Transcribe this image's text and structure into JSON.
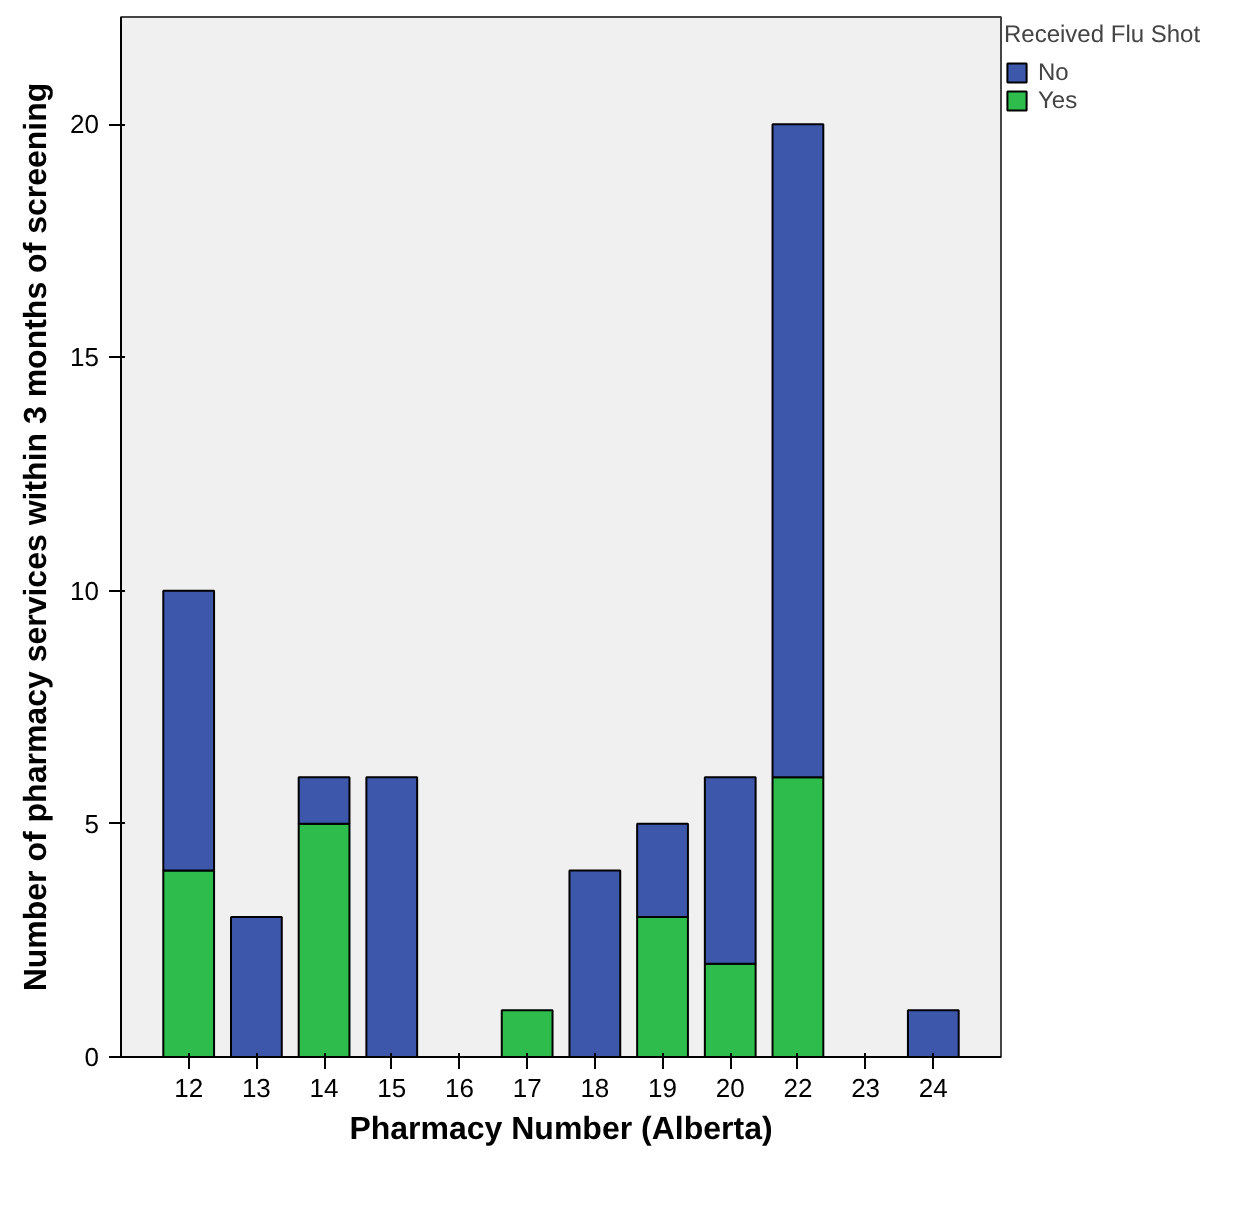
{
  "chart_data": {
    "type": "bar",
    "stacked": true,
    "xlabel": "Pharmacy Number (Alberta)",
    "ylabel": "Number of pharmacy services within 3 months of screening",
    "legend_title": "Received Flu Shot",
    "legend": "right",
    "categories": [
      "12",
      "13",
      "14",
      "15",
      "16",
      "17",
      "18",
      "19",
      "20",
      "22",
      "23",
      "24"
    ],
    "ylim": [
      0,
      22.3
    ],
    "yticks": [
      0,
      5,
      10,
      15,
      20
    ],
    "series": [
      {
        "name": "Yes",
        "color": "#2ebd4c",
        "values": [
          4,
          0,
          5,
          0,
          0,
          1,
          0,
          3,
          2,
          6,
          0,
          0
        ]
      },
      {
        "name": "No",
        "color": "#3d58ab",
        "values": [
          6,
          3,
          1,
          6,
          0,
          0,
          4,
          2,
          4,
          14,
          0,
          1
        ]
      }
    ]
  }
}
